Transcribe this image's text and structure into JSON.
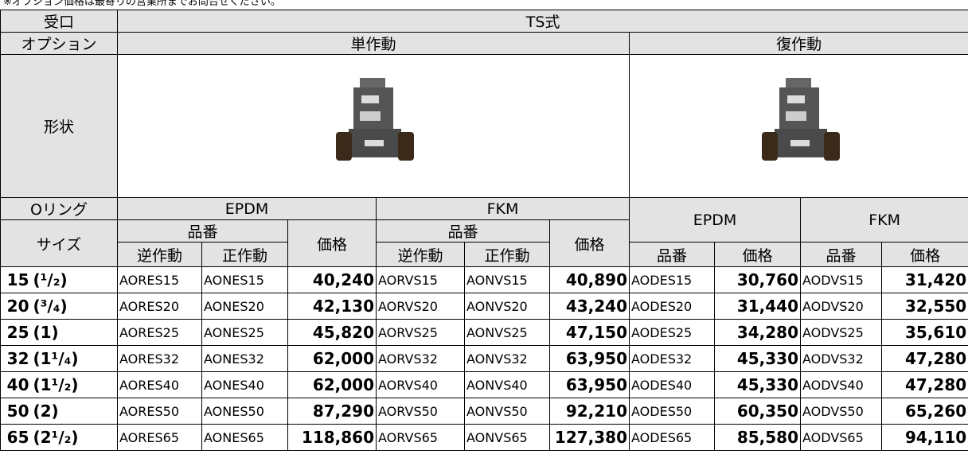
{
  "note": "※オプション価格は最寄りの営業所までお問合せください。",
  "header": {
    "port_label": "受口",
    "port_value": "TS式",
    "option_label": "オプション",
    "single": "単作動",
    "double": "復作動",
    "shape_label": "形状",
    "oring_label": "Oリング",
    "size_label": "サイズ",
    "epdm": "EPDM",
    "fkm": "FKM",
    "part_no": "品番",
    "price": "価格",
    "reverse": "逆作動",
    "direct": "正作動"
  },
  "table": {
    "rows": [
      [
        "15",
        "(¹/₂)",
        "AORES15",
        "AONES15",
        "40,240",
        "AORVS15",
        "AONVS15",
        "40,890",
        "AODES15",
        "30,760",
        "AODVS15",
        "31,420"
      ],
      [
        "20",
        "(³/₄)",
        "AORES20",
        "AONES20",
        "42,130",
        "AORVS20",
        "AONVS20",
        "43,240",
        "AODES20",
        "31,440",
        "AODVS20",
        "32,550"
      ],
      [
        "25",
        "(1)",
        "AORES25",
        "AONES25",
        "45,820",
        "AORVS25",
        "AONVS25",
        "47,150",
        "AODES25",
        "34,280",
        "AODVS25",
        "35,610"
      ],
      [
        "32",
        "(1¹/₄)",
        "AORES32",
        "AONES32",
        "62,000",
        "AORVS32",
        "AONVS32",
        "63,950",
        "AODES32",
        "45,330",
        "AODVS32",
        "47,280"
      ],
      [
        "40",
        "(1¹/₂)",
        "AORES40",
        "AONES40",
        "62,000",
        "AORVS40",
        "AONVS40",
        "63,950",
        "AODES40",
        "45,330",
        "AODVS40",
        "47,280"
      ],
      [
        "50",
        "(2)",
        "AORES50",
        "AONES50",
        "87,290",
        "AORVS50",
        "AONVS50",
        "92,210",
        "AODES50",
        "60,350",
        "AODVS50",
        "65,260"
      ],
      [
        "65",
        "(2¹/₂)",
        "AORES65",
        "AONES65",
        "118,860",
        "AORVS65",
        "AONVS65",
        "127,380",
        "AODES65",
        "85,580",
        "AODVS65",
        "94,110"
      ]
    ]
  }
}
